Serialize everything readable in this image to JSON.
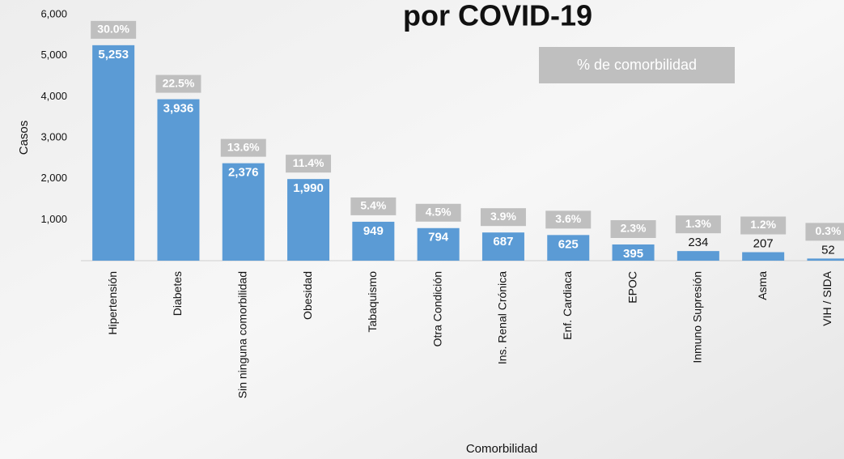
{
  "chart_data": {
    "type": "bar",
    "title": "por COVID-19",
    "xlabel": "Comorbilidad",
    "ylabel": "Casos",
    "categories": [
      "Hipertensión",
      "Diabetes",
      "Sin ninguna comorbilidad",
      "Obesidad",
      "Tabaquismo",
      "Otra Condición",
      "Ins. Renal Crónica",
      "Enf. Cardiaca",
      "EPOC",
      "Inmuno Supresión",
      "Asma",
      "VIH / SIDA"
    ],
    "values": [
      5253,
      3936,
      2376,
      1990,
      949,
      794,
      687,
      625,
      395,
      234,
      207,
      52
    ],
    "value_labels": [
      "5,253",
      "3,936",
      "2,376",
      "1,990",
      "949",
      "794",
      "687",
      "625",
      "395",
      "234",
      "207",
      "52"
    ],
    "color": "#5b9bd5",
    "percentages": {
      "name": "% de comorbilidad",
      "color": "#bfbfbf",
      "values": [
        30.0,
        22.5,
        13.6,
        11.4,
        5.4,
        4.5,
        3.9,
        3.6,
        2.3,
        1.3,
        1.2,
        0.3
      ],
      "value_labels": [
        "30.0%",
        "22.5%",
        "13.6%",
        "11.4%",
        "5.4%",
        "4.5%",
        "3.9%",
        "3.6%",
        "2.3%",
        "1.3%",
        "1.2%",
        "0.3%"
      ]
    },
    "ylim": [
      0,
      6000
    ],
    "yticks": [
      {
        "value": 1000,
        "label": "1,000"
      },
      {
        "value": 2000,
        "label": "2,000"
      },
      {
        "value": 3000,
        "label": "3,000"
      },
      {
        "value": 4000,
        "label": "4,000"
      },
      {
        "value": 5000,
        "label": "5,000"
      },
      {
        "value": 6000,
        "label": "6,000"
      }
    ]
  }
}
